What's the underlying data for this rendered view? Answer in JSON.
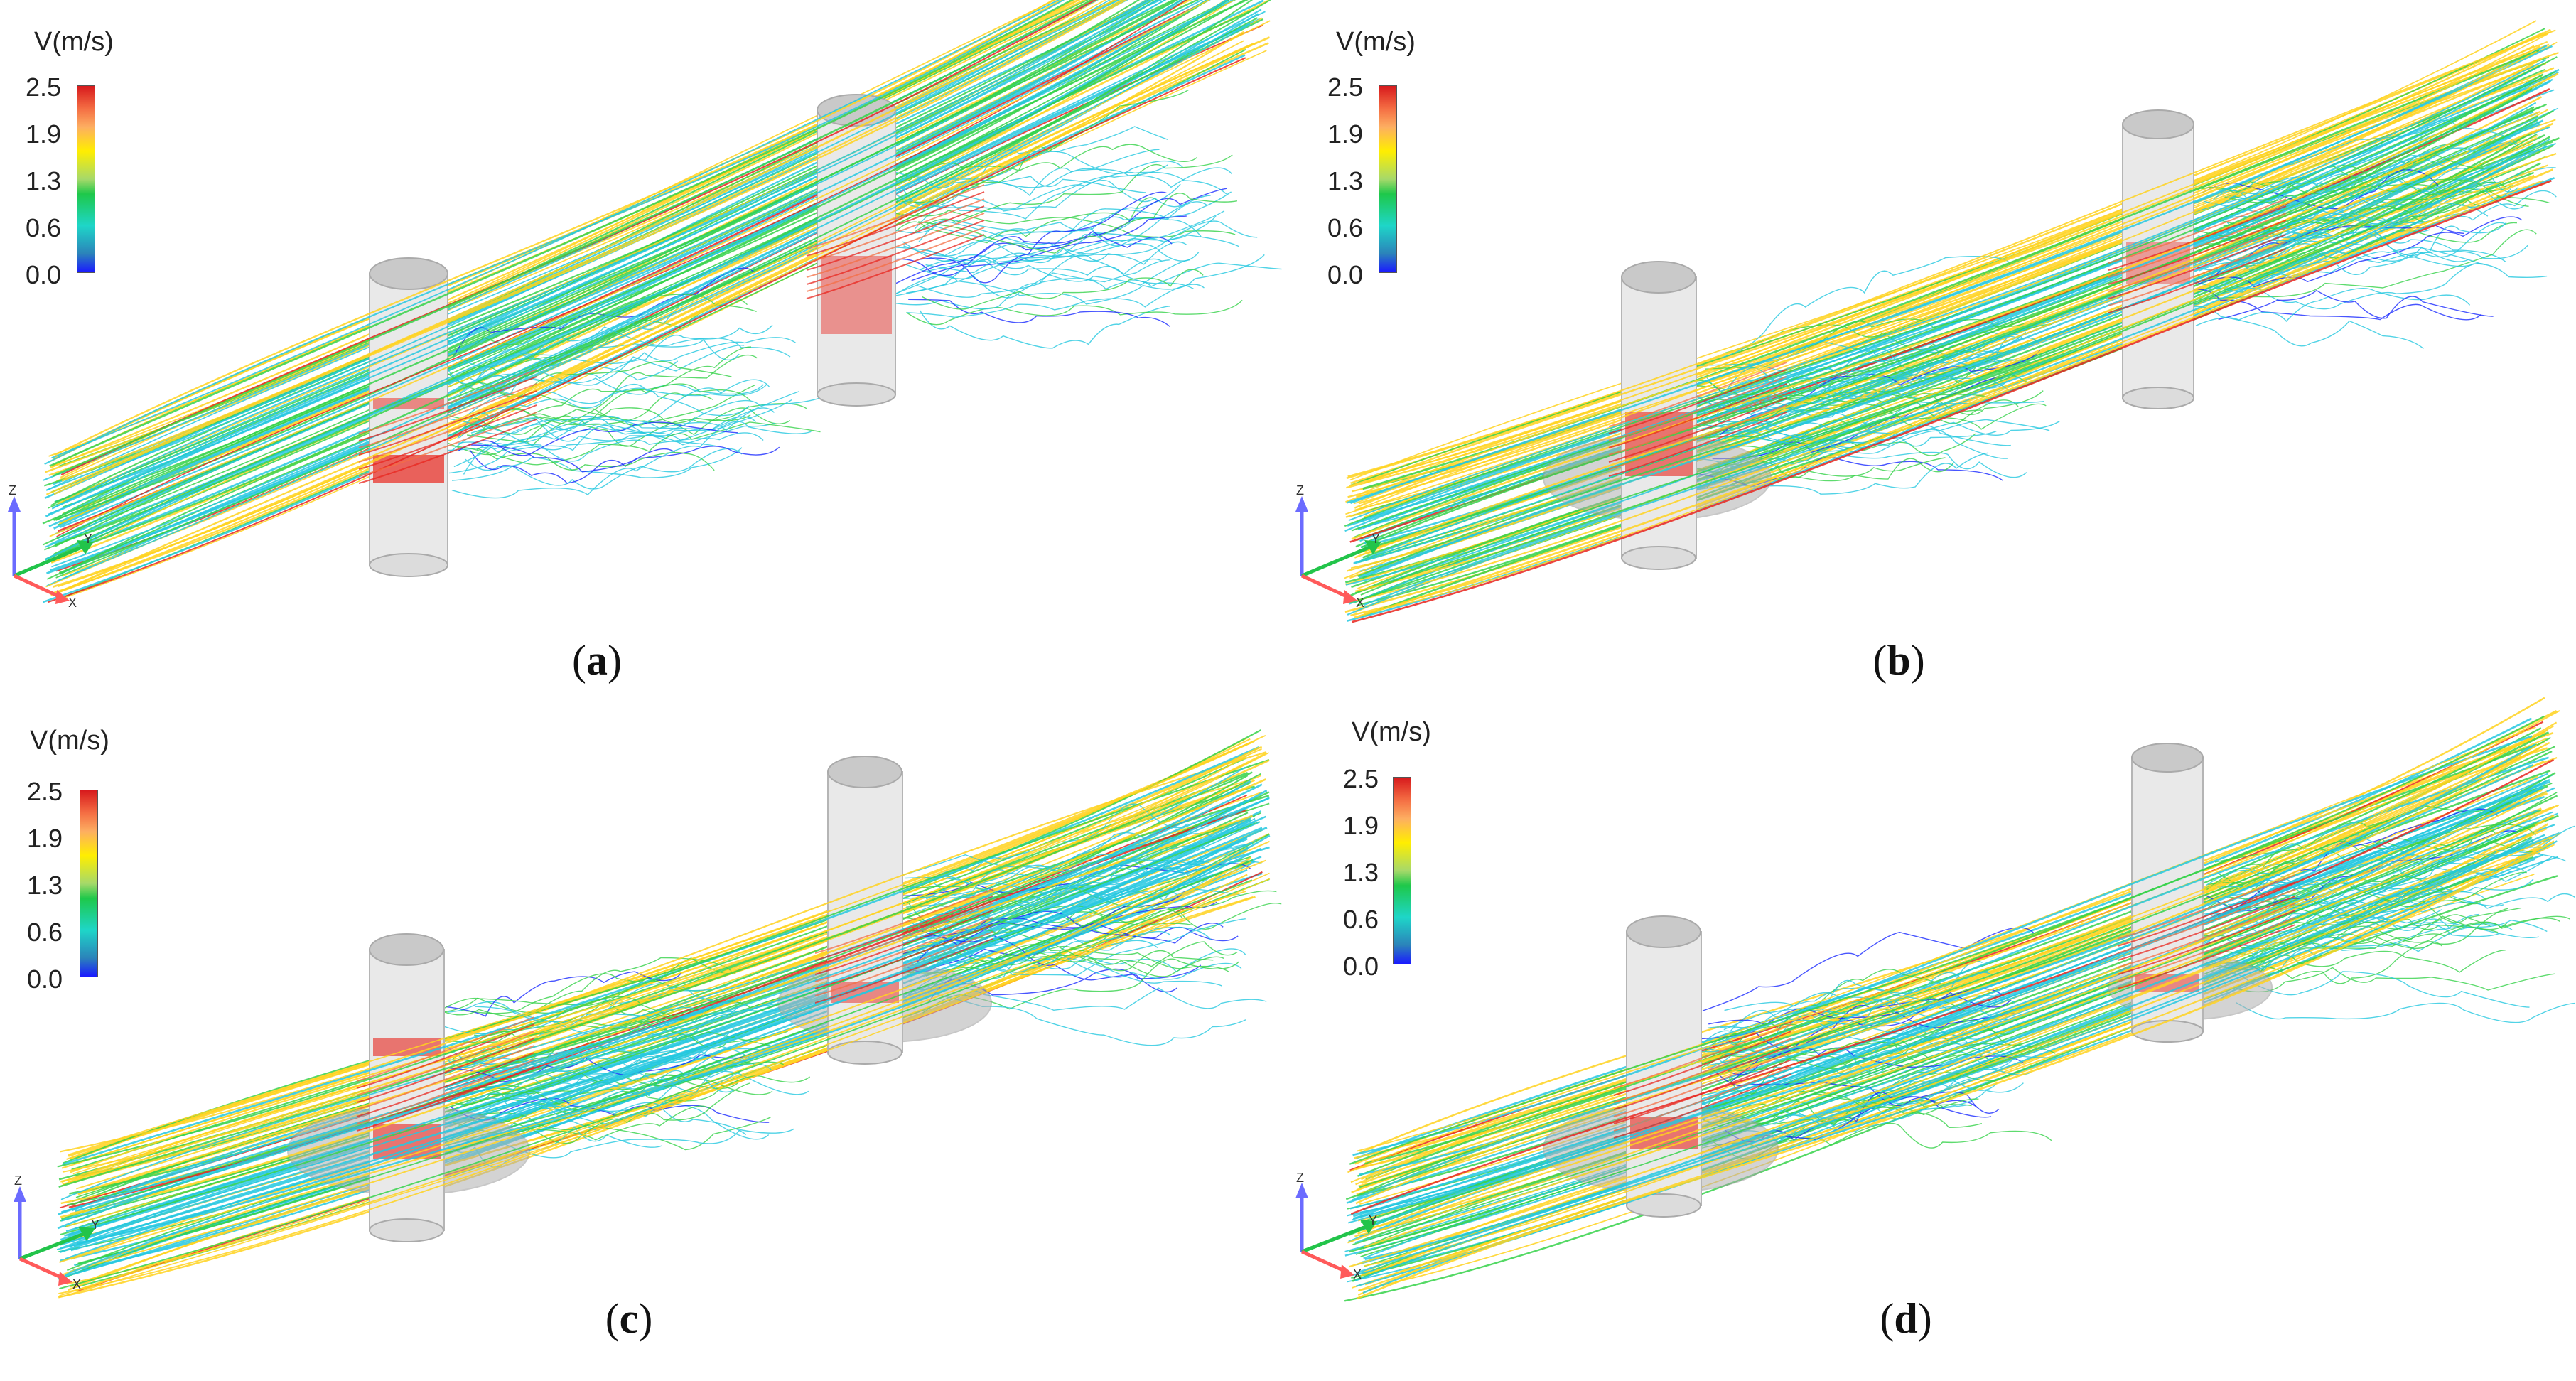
{
  "legend": {
    "title": "V(m/s)",
    "ticks": [
      "2.5",
      "1.9",
      "1.3",
      "0.6",
      "0.0"
    ]
  },
  "axes": {
    "z": "Z",
    "y": "Y",
    "x": "X"
  },
  "colors": {
    "high": "#e8261e",
    "upper": "#ffd21e",
    "mid": "#36d24a",
    "low": "#25c8e0",
    "min": "#1a2bff",
    "pile": "#e6e6e6"
  },
  "panels": [
    {
      "id": "a",
      "caption_open": "(",
      "caption_letter": "a",
      "caption_close": ")"
    },
    {
      "id": "b",
      "caption_open": "(",
      "caption_letter": "b",
      "caption_close": ")"
    },
    {
      "id": "c",
      "caption_open": "(",
      "caption_letter": "c",
      "caption_close": ")"
    },
    {
      "id": "d",
      "caption_open": "(",
      "caption_letter": "d",
      "caption_close": ")"
    }
  ]
}
